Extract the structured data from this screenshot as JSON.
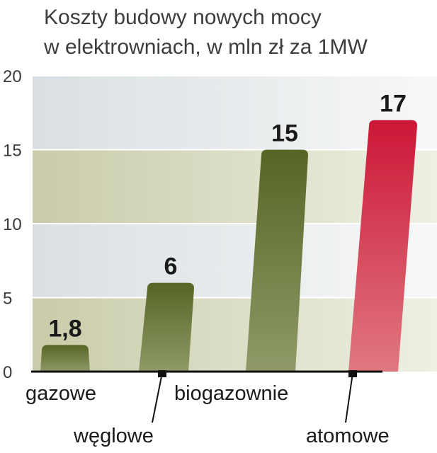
{
  "chart_data": {
    "type": "bar",
    "title": "Koszty budowy nowych mocy\nw elektrowniach, w mln zł za 1MW",
    "xlabel": "",
    "ylabel": "",
    "ylim": [
      0,
      20
    ],
    "yticks": [
      "0",
      "5",
      "10",
      "15",
      "20"
    ],
    "categories": [
      "gazowe",
      "węglowe",
      "biogazownie",
      "atomowe"
    ],
    "values": [
      1.8,
      6,
      15,
      17
    ],
    "data_labels": [
      "1,8",
      "6",
      "15",
      "17"
    ],
    "colors": {
      "gazowe": "#6b7a38",
      "węglowe": "#6b7a38",
      "biogazownie": "#6b7a38",
      "atomowe": "#d42a45"
    },
    "grid": true,
    "legend": "none"
  }
}
